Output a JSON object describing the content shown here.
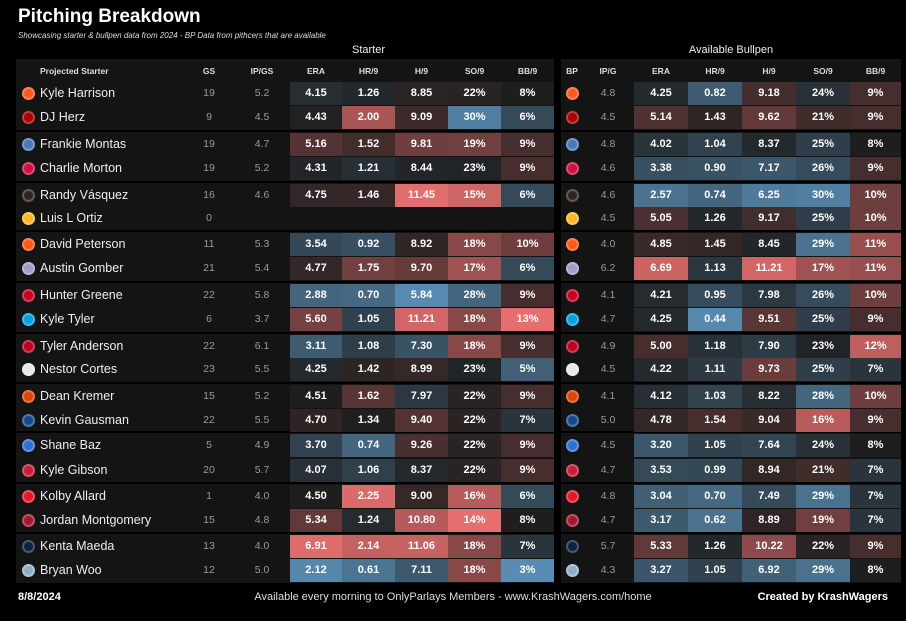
{
  "title": "Pitching Breakdown",
  "subtitle": "Showcasing starter & bullpen data from 2024 - BP Data from pithcers that are available",
  "group_labels": {
    "starter": "Starter",
    "bullpen": "Available Bullpen"
  },
  "footer": {
    "date": "8/8/2024",
    "note": "Available every morning to OnlyParlays Members - www.KrashWagers.com/home",
    "credit": "Created by KrashWagers"
  },
  "chart_data": {
    "type": "table",
    "starter_columns": [
      "Projected Starter",
      "GS",
      "IP/GS",
      "ERA",
      "HR/9",
      "H/9",
      "SO/9",
      "BB/9"
    ],
    "bullpen_columns": [
      "BP",
      "IP/G",
      "ERA",
      "HR/9",
      "H/9",
      "SO/9",
      "BB/9"
    ],
    "rows": [
      {
        "team_logo": "giants-logo",
        "color": "#fd5a1e",
        "starter": "Kyle Harrison",
        "gs": "19",
        "ipgs": "5.2",
        "era": "4.15",
        "hr9": "1.26",
        "h9": "8.85",
        "so9": "22%",
        "bb9": "8%",
        "bp_ipg": "4.8",
        "bp_era": "4.25",
        "bp_hr9": "0.82",
        "bp_h9": "9.18",
        "bp_so9": "24%",
        "bp_bb9": "9%"
      },
      {
        "team_logo": "nationals-logo",
        "color": "#ab0003",
        "starter": "DJ Herz",
        "gs": "9",
        "ipgs": "4.5",
        "era": "4.43",
        "hr9": "2.00",
        "h9": "9.09",
        "so9": "30%",
        "bb9": "6%",
        "bp_ipg": "4.5",
        "bp_era": "5.14",
        "bp_hr9": "1.43",
        "bp_h9": "9.62",
        "bp_so9": "21%",
        "bp_bb9": "9%"
      },
      {
        "team_logo": "brewers-logo",
        "color": "#4a78b8",
        "starter": "Frankie Montas",
        "gs": "19",
        "ipgs": "4.7",
        "era": "5.16",
        "hr9": "1.52",
        "h9": "9.81",
        "so9": "19%",
        "bb9": "9%",
        "bp_ipg": "4.8",
        "bp_era": "4.02",
        "bp_hr9": "1.04",
        "bp_h9": "8.37",
        "bp_so9": "25%",
        "bp_bb9": "8%"
      },
      {
        "team_logo": "braves-logo",
        "color": "#ce1141",
        "starter": "Charlie Morton",
        "gs": "19",
        "ipgs": "5.2",
        "era": "4.31",
        "hr9": "1.21",
        "h9": "8.44",
        "so9": "23%",
        "bb9": "9%",
        "bp_ipg": "4.6",
        "bp_era": "3.38",
        "bp_hr9": "0.90",
        "bp_h9": "7.17",
        "bp_so9": "26%",
        "bp_bb9": "9%"
      },
      {
        "team_logo": "padres-logo",
        "color": "#2f241d",
        "starter": "Randy Vásquez",
        "gs": "16",
        "ipgs": "4.6",
        "era": "4.75",
        "hr9": "1.46",
        "h9": "11.45",
        "so9": "15%",
        "bb9": "6%",
        "bp_ipg": "4.6",
        "bp_era": "2.57",
        "bp_hr9": "0.74",
        "bp_h9": "6.25",
        "bp_so9": "30%",
        "bp_bb9": "10%"
      },
      {
        "team_logo": "pirates-logo",
        "color": "#fdb827",
        "starter": "Luis L Ortiz",
        "gs": "0",
        "ipgs": "",
        "era": "",
        "hr9": "",
        "h9": "",
        "so9": "",
        "bb9": "",
        "bp_ipg": "4.5",
        "bp_era": "5.05",
        "bp_hr9": "1.26",
        "bp_h9": "9.17",
        "bp_so9": "25%",
        "bp_bb9": "10%"
      },
      {
        "team_logo": "mets-logo",
        "color": "#ff5910",
        "starter": "David Peterson",
        "gs": "11",
        "ipgs": "5.3",
        "era": "3.54",
        "hr9": "0.92",
        "h9": "8.92",
        "so9": "18%",
        "bb9": "10%",
        "bp_ipg": "4.0",
        "bp_era": "4.85",
        "bp_hr9": "1.45",
        "bp_h9": "8.45",
        "bp_so9": "29%",
        "bp_bb9": "11%"
      },
      {
        "team_logo": "rockies-logo",
        "color": "#9e9ec8",
        "starter": "Austin Gomber",
        "gs": "21",
        "ipgs": "5.4",
        "era": "4.77",
        "hr9": "1.75",
        "h9": "9.70",
        "so9": "17%",
        "bb9": "6%",
        "bp_ipg": "6.2",
        "bp_era": "6.69",
        "bp_hr9": "1.13",
        "bp_h9": "11.21",
        "bp_so9": "17%",
        "bp_bb9": "11%"
      },
      {
        "team_logo": "reds-logo",
        "color": "#c6011f",
        "starter": "Hunter Greene",
        "gs": "22",
        "ipgs": "5.8",
        "era": "2.88",
        "hr9": "0.70",
        "h9": "5.84",
        "so9": "28%",
        "bb9": "9%",
        "bp_ipg": "4.1",
        "bp_era": "4.21",
        "bp_hr9": "0.95",
        "bp_h9": "7.98",
        "bp_so9": "26%",
        "bp_bb9": "10%"
      },
      {
        "team_logo": "marlins-logo",
        "color": "#00a3e0",
        "starter": "Kyle Tyler",
        "gs": "6",
        "ipgs": "3.7",
        "era": "5.60",
        "hr9": "1.05",
        "h9": "11.21",
        "so9": "18%",
        "bb9": "13%",
        "bp_ipg": "4.7",
        "bp_era": "4.25",
        "bp_hr9": "0.44",
        "bp_h9": "9.51",
        "bp_so9": "25%",
        "bp_bb9": "9%"
      },
      {
        "team_logo": "angels-logo",
        "color": "#ba0021",
        "starter": "Tyler Anderson",
        "gs": "22",
        "ipgs": "6.1",
        "era": "3.11",
        "hr9": "1.08",
        "h9": "7.30",
        "so9": "18%",
        "bb9": "9%",
        "bp_ipg": "4.9",
        "bp_era": "5.00",
        "bp_hr9": "1.18",
        "bp_h9": "7.90",
        "bp_so9": "23%",
        "bp_bb9": "12%"
      },
      {
        "team_logo": "yankees-logo",
        "color": "#e8e8e8",
        "starter": "Nestor Cortes",
        "gs": "23",
        "ipgs": "5.5",
        "era": "4.25",
        "hr9": "1.42",
        "h9": "8.99",
        "so9": "23%",
        "bb9": "5%",
        "bp_ipg": "4.5",
        "bp_era": "4.22",
        "bp_hr9": "1.11",
        "bp_h9": "9.73",
        "bp_so9": "25%",
        "bp_bb9": "7%"
      },
      {
        "team_logo": "orioles-logo",
        "color": "#df4601",
        "starter": "Dean Kremer",
        "gs": "15",
        "ipgs": "5.2",
        "era": "4.51",
        "hr9": "1.62",
        "h9": "7.97",
        "so9": "22%",
        "bb9": "9%",
        "bp_ipg": "4.1",
        "bp_era": "4.12",
        "bp_hr9": "1.03",
        "bp_h9": "8.22",
        "bp_so9": "28%",
        "bp_bb9": "10%"
      },
      {
        "team_logo": "bluejays-logo",
        "color": "#134a8e",
        "starter": "Kevin Gausman",
        "gs": "22",
        "ipgs": "5.5",
        "era": "4.70",
        "hr9": "1.34",
        "h9": "9.40",
        "so9": "22%",
        "bb9": "7%",
        "bp_ipg": "5.0",
        "bp_era": "4.78",
        "bp_hr9": "1.54",
        "bp_h9": "9.04",
        "bp_so9": "16%",
        "bp_bb9": "9%"
      },
      {
        "team_logo": "rays-logo",
        "color": "#2f6fd0",
        "starter": "Shane Baz",
        "gs": "5",
        "ipgs": "4.9",
        "era": "3.70",
        "hr9": "0.74",
        "h9": "9.26",
        "so9": "22%",
        "bb9": "9%",
        "bp_ipg": "4.5",
        "bp_era": "3.20",
        "bp_hr9": "1.05",
        "bp_h9": "7.64",
        "bp_so9": "24%",
        "bp_bb9": "8%"
      },
      {
        "team_logo": "cardinals-logo",
        "color": "#c41e3a",
        "starter": "Kyle Gibson",
        "gs": "20",
        "ipgs": "5.7",
        "era": "4.07",
        "hr9": "1.06",
        "h9": "8.37",
        "so9": "22%",
        "bb9": "9%",
        "bp_ipg": "4.7",
        "bp_era": "3.53",
        "bp_hr9": "0.99",
        "bp_h9": "8.94",
        "bp_so9": "21%",
        "bp_bb9": "7%"
      },
      {
        "team_logo": "phillies-logo",
        "color": "#e81828",
        "starter": "Kolby Allard",
        "gs": "1",
        "ipgs": "4.0",
        "era": "4.50",
        "hr9": "2.25",
        "h9": "9.00",
        "so9": "16%",
        "bb9": "6%",
        "bp_ipg": "4.8",
        "bp_era": "3.04",
        "bp_hr9": "0.70",
        "bp_h9": "7.49",
        "bp_so9": "29%",
        "bp_bb9": "7%"
      },
      {
        "team_logo": "diamondbacks-logo",
        "color": "#a71930",
        "starter": "Jordan Montgomery",
        "gs": "15",
        "ipgs": "4.8",
        "era": "5.34",
        "hr9": "1.24",
        "h9": "10.80",
        "so9": "14%",
        "bb9": "8%",
        "bp_ipg": "4.7",
        "bp_era": "3.17",
        "bp_hr9": "0.62",
        "bp_h9": "8.89",
        "bp_so9": "19%",
        "bp_bb9": "7%"
      },
      {
        "team_logo": "tigers-logo",
        "color": "#0c2340",
        "starter": "Kenta Maeda",
        "gs": "13",
        "ipgs": "4.0",
        "era": "6.91",
        "hr9": "2.14",
        "h9": "11.06",
        "so9": "18%",
        "bb9": "7%",
        "bp_ipg": "5.7",
        "bp_era": "5.33",
        "bp_hr9": "1.26",
        "bp_h9": "10.22",
        "bp_so9": "22%",
        "bp_bb9": "9%"
      },
      {
        "team_logo": "mariners-logo",
        "color": "#8fb0c8",
        "starter": "Bryan Woo",
        "gs": "12",
        "ipgs": "5.0",
        "era": "2.12",
        "hr9": "0.61",
        "h9": "7.11",
        "so9": "18%",
        "bb9": "3%",
        "bp_ipg": "4.3",
        "bp_era": "3.27",
        "bp_hr9": "1.05",
        "bp_h9": "6.92",
        "bp_so9": "29%",
        "bp_bb9": "8%"
      }
    ]
  }
}
